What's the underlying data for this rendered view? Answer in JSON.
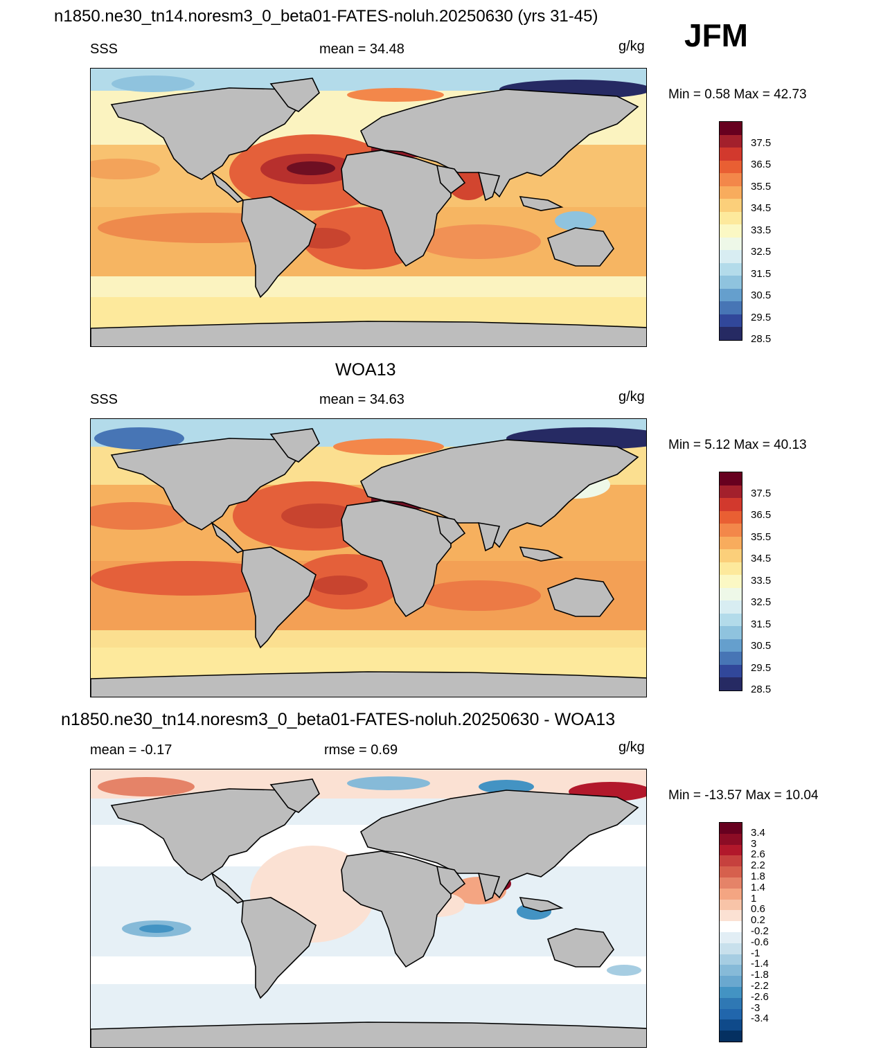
{
  "header": {
    "title": "n1850.ne30_tn14.noresm3_0_beta01-FATES-noluh.20250630 (yrs 31-45)",
    "season": "JFM"
  },
  "panels": [
    {
      "id": "model",
      "title": "",
      "left_label": "SSS",
      "center_label": "mean =  34.48",
      "units": "g/kg",
      "minmax": "Min =   0.58 Max =  42.73"
    },
    {
      "id": "obs",
      "title": "WOA13",
      "left_label": "SSS",
      "center_label": "mean =  34.63",
      "units": "g/kg",
      "minmax": "Min =   5.12 Max =  40.13"
    },
    {
      "id": "diff",
      "title": "n1850.ne30_tn14.noresm3_0_beta01-FATES-noluh.20250630 - WOA13",
      "left_label": "mean =  -0.17",
      "center_label": "rmse =   0.69",
      "units": "g/kg",
      "minmax": "Min = -13.57 Max =  10.04"
    }
  ],
  "colorbars": {
    "salinity": {
      "labels": [
        "37.5",
        "36.5",
        "35.5",
        "34.5",
        "33.5",
        "32.5",
        "31.5",
        "30.5",
        "29.5",
        "28.5"
      ],
      "colors": [
        "#67001f",
        "#a3202c",
        "#d2392d",
        "#e95f33",
        "#f3874a",
        "#f8ac5d",
        "#fbcf7a",
        "#fde99c",
        "#fbf8c4",
        "#eef8e8",
        "#d8edf2",
        "#b3dbea",
        "#8fc3de",
        "#659fcd",
        "#4775b5",
        "#31479a",
        "#262a63"
      ]
    },
    "difference": {
      "labels": [
        "3.4",
        "3",
        "2.6",
        "2.2",
        "1.8",
        "1.4",
        "1",
        "0.6",
        "0.2",
        "-0.2",
        "-0.6",
        "-1",
        "-1.4",
        "-1.8",
        "-2.2",
        "-2.6",
        "-3",
        "-3.4"
      ],
      "colors": [
        "#67001f",
        "#8c0c25",
        "#b2182b",
        "#c6413e",
        "#d6604d",
        "#e58368",
        "#f4a582",
        "#f8c4a8",
        "#fbe1d3",
        "#ffffff",
        "#e2eef5",
        "#c8e0ec",
        "#a6cde2",
        "#86bad8",
        "#6aa8cf",
        "#4393c3",
        "#2f78b4",
        "#2166ac",
        "#0f4a8a",
        "#053061"
      ]
    }
  },
  "map_colors": {
    "land": "#bdbdbd",
    "coast": "#000000"
  }
}
